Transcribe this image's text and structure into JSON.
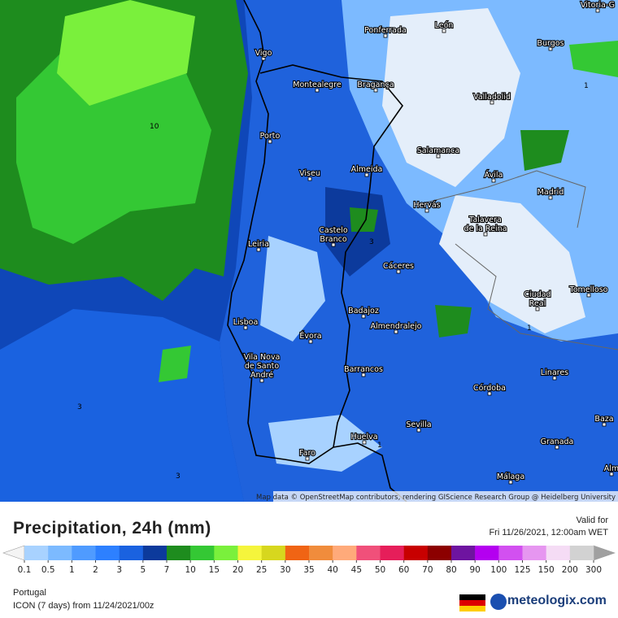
{
  "map": {
    "cities": [
      [
        "Ponferrada"
      ],
      [
        "León"
      ],
      [
        "Vitoria-G"
      ],
      [
        "Burgos"
      ],
      [
        "Vigo"
      ],
      [
        "Montealegre"
      ],
      [
        "Bragança"
      ],
      [
        "Valladolid"
      ],
      [
        "Porto"
      ],
      [
        "Salamanca"
      ],
      [
        "Viseu"
      ],
      [
        "Almeida"
      ],
      [
        "Ávila"
      ],
      [
        "Madrid"
      ],
      [
        "Hervás"
      ],
      [
        "Talavera",
        "de la Reina"
      ],
      [
        "Castelo",
        "Branco"
      ],
      [
        "Leiria"
      ],
      [
        "Cáceres"
      ],
      [
        "Tomelloso"
      ],
      [
        "Ciudad",
        "Real"
      ],
      [
        "Badajoz"
      ],
      [
        "Lisboa"
      ],
      [
        "Almendralejo"
      ],
      [
        "Évora"
      ],
      [
        "Vila Nova",
        "de Santo",
        "André"
      ],
      [
        "Barrancos"
      ],
      [
        "Linares"
      ],
      [
        "Córdoba"
      ],
      [
        "Baza"
      ],
      [
        "Sevilla"
      ],
      [
        "Huelva"
      ],
      [
        "Granada"
      ],
      [
        "Faro"
      ],
      [
        "Málaga"
      ],
      [
        "Alm"
      ]
    ],
    "contour_labels": [
      "10",
      "3",
      "3",
      "1",
      "1",
      "1",
      "3"
    ],
    "attribution": "Map data © OpenStreetMap contributors, rendering GIScience Research Group @ Heidelberg University"
  },
  "legend": {
    "title": "Precipitation, 24h (mm)",
    "valid_label": "Valid for",
    "valid_time": "Fri 11/26/2021, 12:00am WET",
    "labels": [
      0.1,
      0.5,
      1,
      2,
      3,
      5,
      7,
      10,
      15,
      20,
      25,
      30,
      35,
      40,
      45,
      50,
      60,
      70,
      80,
      90,
      100,
      125,
      150,
      200,
      300
    ],
    "colors": [
      "#a8d2ff",
      "#7cbaff",
      "#4f9bff",
      "#2d80ff",
      "#1a62e0",
      "#0c3a9c",
      "#1e8c1e",
      "#34c834",
      "#7af03c",
      "#f5f53c",
      "#d7d71e",
      "#f06414",
      "#f08c3c",
      "#ffaa7a",
      "#f0507a",
      "#e61e5a",
      "#c80000",
      "#8c0000",
      "#6e14a0",
      "#b400f0",
      "#d250f0",
      "#e696f0",
      "#f5dcf5",
      "#d2d2d2"
    ],
    "low_color": "#f4f4f4",
    "high_color": "#a0a0a0"
  },
  "footer": {
    "region": "Portugal",
    "model": "ICON (7 days) from 11/24/2021/00z",
    "brand": "meteologix.com"
  }
}
